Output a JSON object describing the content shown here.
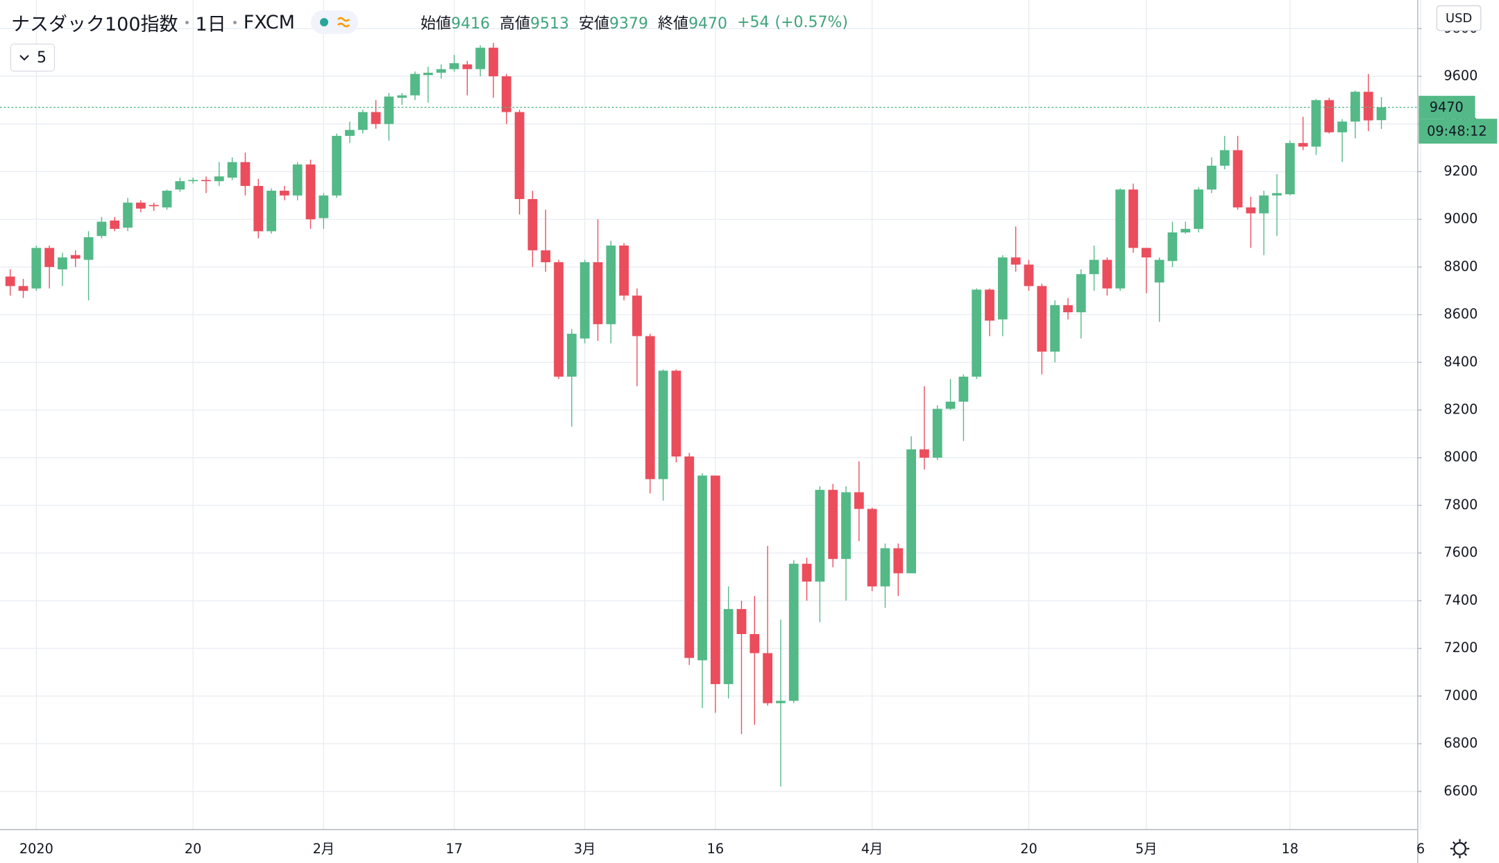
{
  "chart_data": {
    "type": "candlestick",
    "title": "ナスダック100指数",
    "interval": "1日",
    "source": "FXCM",
    "legend": [
      {
        "label": "始値",
        "value": 9416
      },
      {
        "label": "高値",
        "value": 9513
      },
      {
        "label": "安値",
        "value": 9379
      },
      {
        "label": "終値",
        "value": 9470
      }
    ],
    "change": "+54",
    "change_pct": "(+0.57%)",
    "indicator_count": 5,
    "currency": "USD",
    "last_price": 9470,
    "countdown": "09:48:12",
    "up_color": "#53b987",
    "down_color": "#eb4d5c",
    "grid": true,
    "ylim": [
      6440,
      9920
    ],
    "yticks": [
      6600,
      6800,
      7000,
      7200,
      7400,
      7600,
      7800,
      8000,
      8200,
      8400,
      8600,
      8800,
      9000,
      9200,
      9400,
      9600,
      9800
    ],
    "categories": [
      null,
      null,
      "2020",
      null,
      null,
      null,
      null,
      null,
      null,
      null,
      null,
      null,
      null,
      null,
      "20",
      null,
      null,
      null,
      null,
      null,
      null,
      null,
      null,
      null,
      "2月",
      null,
      null,
      null,
      null,
      null,
      null,
      null,
      null,
      null,
      "17",
      null,
      null,
      null,
      null,
      null,
      null,
      null,
      null,
      null,
      "3月",
      null,
      null,
      null,
      null,
      null,
      null,
      null,
      null,
      null,
      "16",
      null,
      null,
      null,
      null,
      null,
      null,
      null,
      null,
      null,
      null,
      null,
      "4月",
      null,
      null,
      null,
      null,
      null,
      null,
      null,
      null,
      null,
      null,
      null,
      "20",
      null,
      null,
      null,
      null,
      null,
      null,
      null,
      null,
      "5月",
      null,
      null,
      null,
      null,
      null,
      null,
      null,
      null,
      null,
      null,
      "18",
      null,
      null,
      null,
      null,
      null,
      null,
      null,
      null,
      null,
      "6"
    ],
    "open": [
      8760,
      8720,
      8710,
      8880,
      8790,
      8850,
      8830,
      8930,
      8995,
      8965,
      9070,
      9060,
      9050,
      9125,
      9160,
      9165,
      9160,
      9175,
      9240,
      9140,
      8950,
      9120,
      9100,
      9230,
      9005,
      9100,
      9350,
      9375,
      9450,
      9400,
      9510,
      9520,
      9605,
      9615,
      9630,
      9650,
      9630,
      9720,
      9600,
      9450,
      9085,
      8870,
      8820,
      8340,
      8500,
      8820,
      8560,
      8890,
      8680,
      8510,
      7910,
      8365,
      8005,
      7150,
      7925,
      7050,
      7365,
      7260,
      7180,
      6970,
      6980,
      7555,
      7480,
      7865,
      7575,
      7855,
      7785,
      7460,
      7620,
      7515,
      8035,
      8000,
      8205,
      8235,
      8340,
      8705,
      8580,
      8840,
      8810,
      8720,
      8445,
      8640,
      8610,
      8770,
      8830,
      8710,
      9125,
      8880,
      8735,
      8825,
      8945,
      8960,
      9125,
      9225,
      9290,
      9050,
      9025,
      9100,
      9105,
      9320,
      9305,
      9500,
      9365,
      9410,
      9535,
      9416,
      null,
      null,
      null
    ],
    "high": [
      8790,
      8750,
      8890,
      8890,
      8860,
      8870,
      8950,
      9010,
      9010,
      9090,
      9080,
      9070,
      9125,
      9175,
      9175,
      9180,
      9240,
      9260,
      9280,
      9170,
      9130,
      9140,
      9240,
      9250,
      9110,
      9360,
      9410,
      9460,
      9500,
      9530,
      9530,
      9620,
      9640,
      9650,
      9690,
      9665,
      9730,
      9740,
      9610,
      9460,
      9120,
      9040,
      8830,
      8540,
      8830,
      9000,
      8910,
      8900,
      8710,
      8520,
      8370,
      8370,
      8020,
      7935,
      7925,
      7460,
      7400,
      7420,
      7630,
      7320,
      7570,
      7580,
      7880,
      7890,
      7880,
      7985,
      7790,
      7640,
      7640,
      8090,
      8300,
      8220,
      8330,
      8350,
      8710,
      8710,
      8850,
      8970,
      8830,
      8730,
      8660,
      8670,
      8790,
      8890,
      8840,
      9130,
      9150,
      8880,
      8840,
      8990,
      8990,
      9135,
      9260,
      9350,
      9350,
      9095,
      9120,
      9190,
      9330,
      9430,
      9505,
      9510,
      9420,
      9540,
      9610,
      9513,
      null,
      null,
      null
    ],
    "low": [
      8680,
      8670,
      8700,
      8710,
      8720,
      8800,
      8660,
      8920,
      8950,
      8950,
      9030,
      9035,
      9040,
      9115,
      9150,
      9110,
      9140,
      9165,
      9100,
      8920,
      8940,
      9080,
      9080,
      8960,
      8960,
      9090,
      9320,
      9360,
      9380,
      9330,
      9480,
      9500,
      9490,
      9590,
      9620,
      9520,
      9600,
      9510,
      9400,
      9020,
      8800,
      8780,
      8330,
      8130,
      8480,
      8490,
      8480,
      8660,
      8300,
      7850,
      7820,
      7980,
      7130,
      6950,
      6930,
      6990,
      6840,
      6880,
      6960,
      6620,
      6970,
      7400,
      7310,
      7540,
      7400,
      7650,
      7440,
      7370,
      7420,
      7515,
      7950,
      7990,
      8200,
      8070,
      8330,
      8510,
      8510,
      8780,
      8700,
      8350,
      8400,
      8580,
      8500,
      8700,
      8680,
      8700,
      8860,
      8690,
      8570,
      8800,
      8940,
      8945,
      9110,
      9210,
      9040,
      8880,
      8850,
      8930,
      9100,
      9290,
      9270,
      9360,
      9240,
      9340,
      9370,
      9379,
      null,
      null,
      null
    ],
    "close": [
      8720,
      8700,
      8880,
      8800,
      8840,
      8835,
      8925,
      8990,
      8960,
      9070,
      9045,
      9055,
      9120,
      9160,
      9165,
      9160,
      9180,
      9240,
      9140,
      8950,
      9120,
      9100,
      9230,
      9000,
      9100,
      9350,
      9375,
      9450,
      9400,
      9515,
      9520,
      9610,
      9615,
      9630,
      9655,
      9630,
      9720,
      9600,
      9450,
      9085,
      8870,
      8820,
      8340,
      8520,
      8820,
      8560,
      8890,
      8680,
      8510,
      7910,
      8365,
      8005,
      7160,
      7925,
      7050,
      7365,
      7260,
      7180,
      6970,
      6980,
      7555,
      7480,
      7865,
      7575,
      7855,
      7785,
      7460,
      7620,
      7515,
      8035,
      8000,
      8205,
      8235,
      8340,
      8705,
      8575,
      8840,
      8810,
      8720,
      8445,
      8640,
      8610,
      8770,
      8830,
      8710,
      9125,
      8880,
      8840,
      8830,
      8945,
      8960,
      9125,
      9225,
      9290,
      9050,
      9025,
      9100,
      9110,
      9320,
      9305,
      9500,
      9365,
      9410,
      9535,
      9415,
      9470,
      null,
      null,
      null
    ]
  }
}
